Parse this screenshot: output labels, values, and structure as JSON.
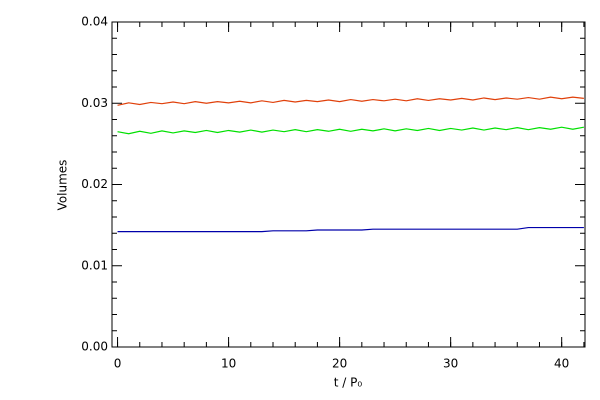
{
  "chart_data": {
    "type": "line",
    "xlabel": "t / P₀",
    "ylabel": "Volumes",
    "x": [
      0,
      1,
      2,
      3,
      4,
      5,
      6,
      7,
      8,
      9,
      10,
      11,
      12,
      13,
      14,
      15,
      16,
      17,
      18,
      19,
      20,
      21,
      22,
      23,
      24,
      25,
      26,
      27,
      28,
      29,
      30,
      31,
      32,
      33,
      34,
      35,
      36,
      37,
      38,
      39,
      40,
      41,
      42
    ],
    "series": [
      {
        "color": "#e0400a",
        "values": [
          0.02975,
          0.03005,
          0.02985,
          0.0301,
          0.02995,
          0.03015,
          0.02995,
          0.0302,
          0.03,
          0.0302,
          0.03005,
          0.03025,
          0.03005,
          0.0303,
          0.0301,
          0.03035,
          0.03015,
          0.03035,
          0.0302,
          0.0304,
          0.0302,
          0.03045,
          0.03025,
          0.03045,
          0.0303,
          0.0305,
          0.0303,
          0.03055,
          0.03035,
          0.03055,
          0.0304,
          0.0306,
          0.0304,
          0.03065,
          0.03045,
          0.03065,
          0.0305,
          0.0307,
          0.0305,
          0.03075,
          0.03055,
          0.03075,
          0.0306
        ]
      },
      {
        "color": "#00e000",
        "values": [
          0.0265,
          0.02625,
          0.02655,
          0.0263,
          0.0266,
          0.02635,
          0.0266,
          0.0264,
          0.02665,
          0.0264,
          0.02665,
          0.02645,
          0.0267,
          0.02645,
          0.0267,
          0.0265,
          0.02675,
          0.0265,
          0.02675,
          0.02655,
          0.0268,
          0.02655,
          0.0268,
          0.0266,
          0.02685,
          0.0266,
          0.02685,
          0.02665,
          0.0269,
          0.02665,
          0.0269,
          0.0267,
          0.02695,
          0.0267,
          0.02695,
          0.02675,
          0.027,
          0.02675,
          0.027,
          0.0268,
          0.02705,
          0.0268,
          0.02705
        ]
      },
      {
        "color": "#0000aa",
        "values": [
          0.0142,
          0.0142,
          0.0142,
          0.0142,
          0.0142,
          0.0142,
          0.0142,
          0.0142,
          0.0142,
          0.0142,
          0.0142,
          0.0142,
          0.0142,
          0.0142,
          0.0143,
          0.0143,
          0.0143,
          0.0143,
          0.0144,
          0.0144,
          0.0144,
          0.0144,
          0.0144,
          0.0145,
          0.0145,
          0.0145,
          0.0145,
          0.0145,
          0.0145,
          0.0145,
          0.0145,
          0.0145,
          0.0145,
          0.0145,
          0.0145,
          0.0145,
          0.0145,
          0.0147,
          0.0147,
          0.0147,
          0.0147,
          0.0147,
          0.0147
        ]
      }
    ],
    "xlim": [
      -0.5,
      42.1
    ],
    "xticks": [
      0,
      10,
      20,
      30,
      40
    ],
    "ylim": [
      0,
      0.04
    ],
    "yticks": [
      {
        "value": 0,
        "label": "0.00"
      },
      {
        "value": 0.01,
        "label": "0.01"
      },
      {
        "value": 0.02,
        "label": "0.02"
      },
      {
        "value": 0.03,
        "label": "0.03"
      },
      {
        "value": 0.04,
        "label": "0.04"
      }
    ]
  }
}
